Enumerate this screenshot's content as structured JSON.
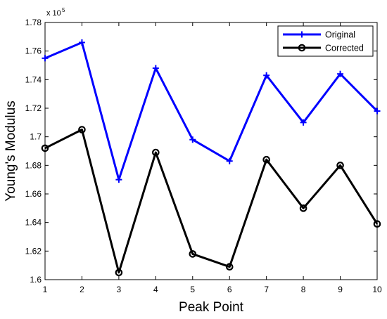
{
  "chart_data": {
    "type": "line",
    "title": "",
    "xlabel": "Peak Point",
    "ylabel": "Young's Modulus",
    "y_multiplier_label": "x 10",
    "y_multiplier_exponent": "5",
    "x": [
      1,
      2,
      3,
      4,
      5,
      6,
      7,
      8,
      9,
      10
    ],
    "xlim": [
      1,
      10
    ],
    "ylim": [
      1.6,
      1.78
    ],
    "x_ticks": [
      1,
      2,
      3,
      4,
      5,
      6,
      7,
      8,
      9,
      10
    ],
    "x_tick_labels": [
      "1",
      "2",
      "3",
      "4",
      "5",
      "6",
      "7",
      "8",
      "9",
      "10"
    ],
    "y_ticks": [
      1.6,
      1.62,
      1.64,
      1.66,
      1.68,
      1.7,
      1.72,
      1.74,
      1.76,
      1.78
    ],
    "y_tick_labels": [
      "1.6",
      "1.62",
      "1.64",
      "1.66",
      "1.68",
      "1.7",
      "1.72",
      "1.74",
      "1.76",
      "1.78"
    ],
    "grid": false,
    "legend_position": "top-right",
    "series": [
      {
        "name": "Original",
        "color": "#0000ff",
        "marker": "plus",
        "values": [
          1.755,
          1.766,
          1.67,
          1.748,
          1.698,
          1.683,
          1.743,
          1.71,
          1.744,
          1.718
        ]
      },
      {
        "name": "Corrected",
        "color": "#000000",
        "marker": "circle",
        "values": [
          1.692,
          1.705,
          1.605,
          1.689,
          1.618,
          1.609,
          1.684,
          1.65,
          1.68,
          1.639
        ]
      }
    ]
  }
}
